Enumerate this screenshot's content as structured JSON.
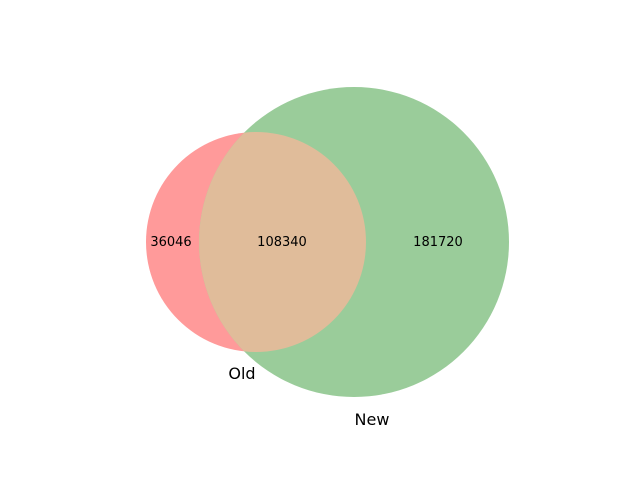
{
  "diagram": {
    "type": "venn2",
    "sets": [
      {
        "name": "Old",
        "color": "#ff9a9a"
      },
      {
        "name": "New",
        "color": "#9acc9a"
      }
    ],
    "overlap_color": "#e0bc9a",
    "regions": {
      "old_only": "36046",
      "both": "108340",
      "new_only": "181720"
    }
  }
}
